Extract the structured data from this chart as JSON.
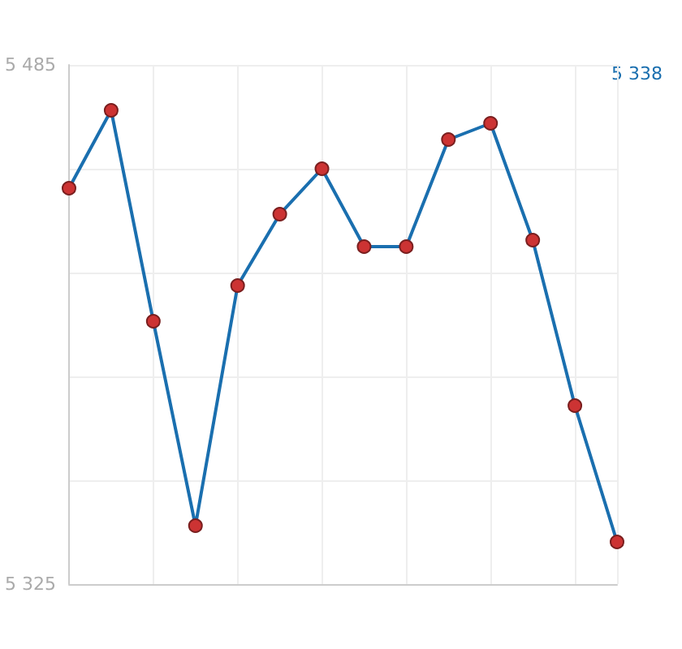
{
  "chart_data": {
    "type": "line",
    "categories": [
      null,
      null,
      null,
      null,
      null,
      null,
      null,
      null,
      null,
      null,
      null,
      null,
      null,
      null
    ],
    "series": [
      {
        "color": "#1a6faf",
        "values": [
          5447,
          5471,
          5406,
          5343,
          5417,
          5439,
          5453,
          5429,
          5429,
          5462,
          5467,
          5431,
          5380,
          5338
        ]
      }
    ],
    "ylim": [
      5325,
      5485
    ],
    "yticks": [
      {
        "value": 5325,
        "label": "5 325"
      },
      {
        "value": 5357,
        "label": null
      },
      {
        "value": 5389,
        "label": null
      },
      {
        "value": 5421,
        "label": null
      },
      {
        "value": 5453,
        "label": null
      },
      {
        "value": 5485,
        "label": "5 485"
      }
    ],
    "annotations": [
      "5 338"
    ],
    "grid": true,
    "marker": "circle",
    "line_style": "solid"
  }
}
